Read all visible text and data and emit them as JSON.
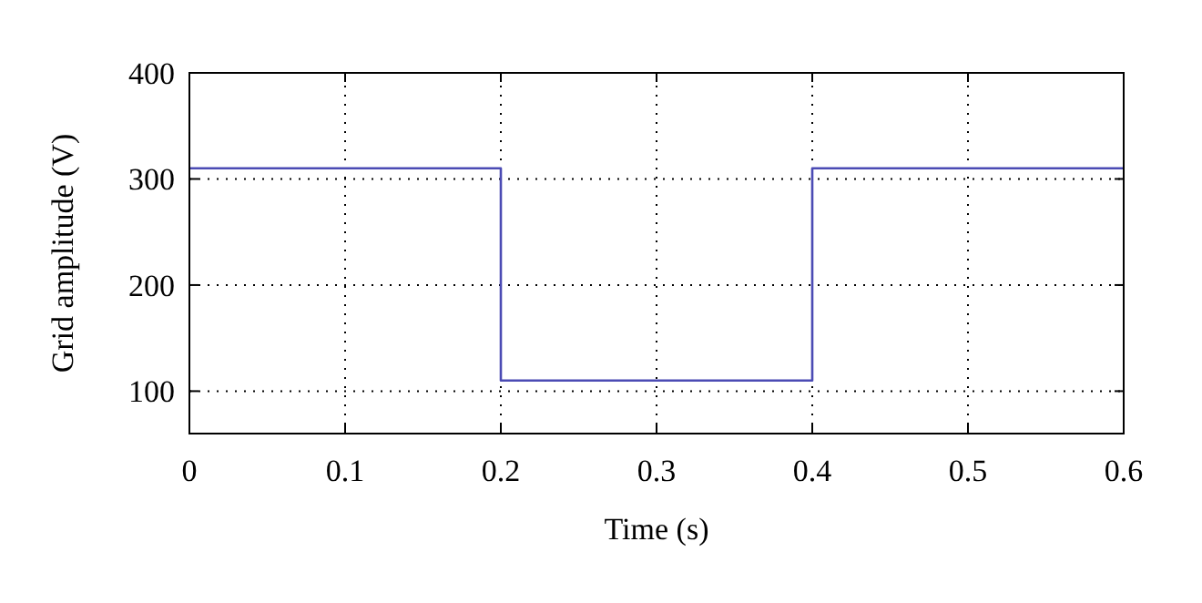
{
  "chart_data": {
    "type": "line",
    "xlabel": "Time (s)",
    "ylabel": "Grid amplitude (V)",
    "x": [
      0,
      0.2,
      0.2,
      0.4,
      0.4,
      0.6
    ],
    "series": [
      {
        "color": "#4b4bb4",
        "values": [
          310,
          310,
          110,
          110,
          310,
          310
        ]
      }
    ],
    "xlim": [
      0,
      0.6
    ],
    "xticks": [
      0,
      0.1,
      0.2,
      0.3,
      0.4,
      0.5,
      0.6
    ],
    "ylim": [
      60,
      400
    ],
    "yticks": [
      100,
      200,
      300,
      400
    ],
    "grid": true,
    "line_style": "solid",
    "marker": "none"
  }
}
